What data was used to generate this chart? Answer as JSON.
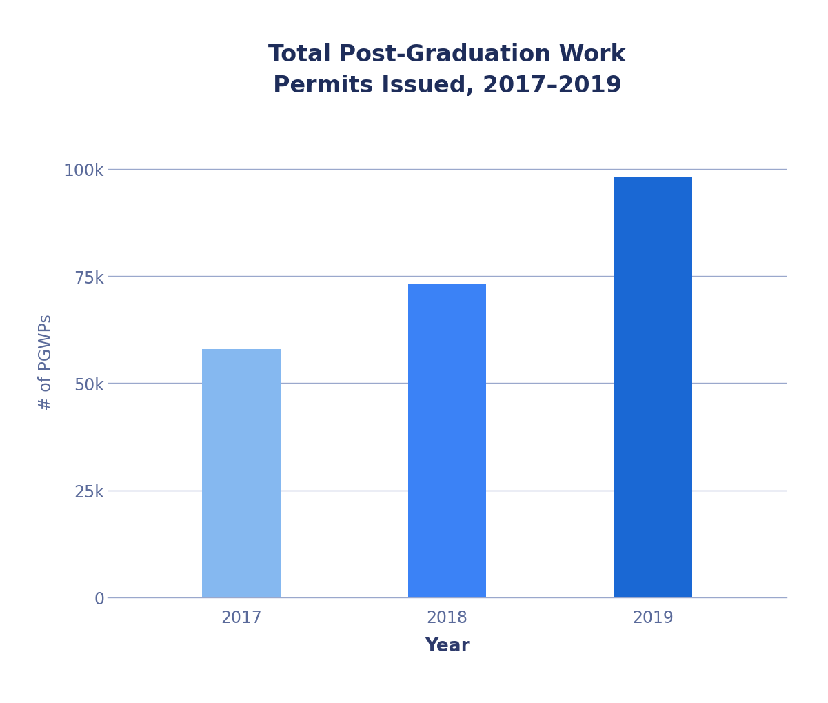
{
  "categories": [
    "2017",
    "2018",
    "2019"
  ],
  "values": [
    58000,
    73000,
    98000
  ],
  "bar_colors": [
    "#85b8f0",
    "#3b82f6",
    "#1a68d4"
  ],
  "title": "Total Post-Graduation Work\nPermits Issued, 2017–2019",
  "xlabel": "Year",
  "ylabel": "# of PGWPs",
  "ylim": [
    0,
    110000
  ],
  "yticks": [
    0,
    25000,
    50000,
    75000,
    100000
  ],
  "ytick_labels": [
    "0",
    "25k",
    "50k",
    "75k",
    "100k"
  ],
  "title_color": "#1e2d5a",
  "axis_label_color": "#2d3a6b",
  "tick_color": "#5a6a9a",
  "grid_color": "#9aa8cc",
  "background_color": "#ffffff",
  "title_fontsize": 24,
  "xlabel_fontsize": 19,
  "ylabel_fontsize": 17,
  "tick_fontsize": 17,
  "bar_width": 0.38,
  "figsize": [
    12.01,
    10.2
  ],
  "dpi": 100
}
